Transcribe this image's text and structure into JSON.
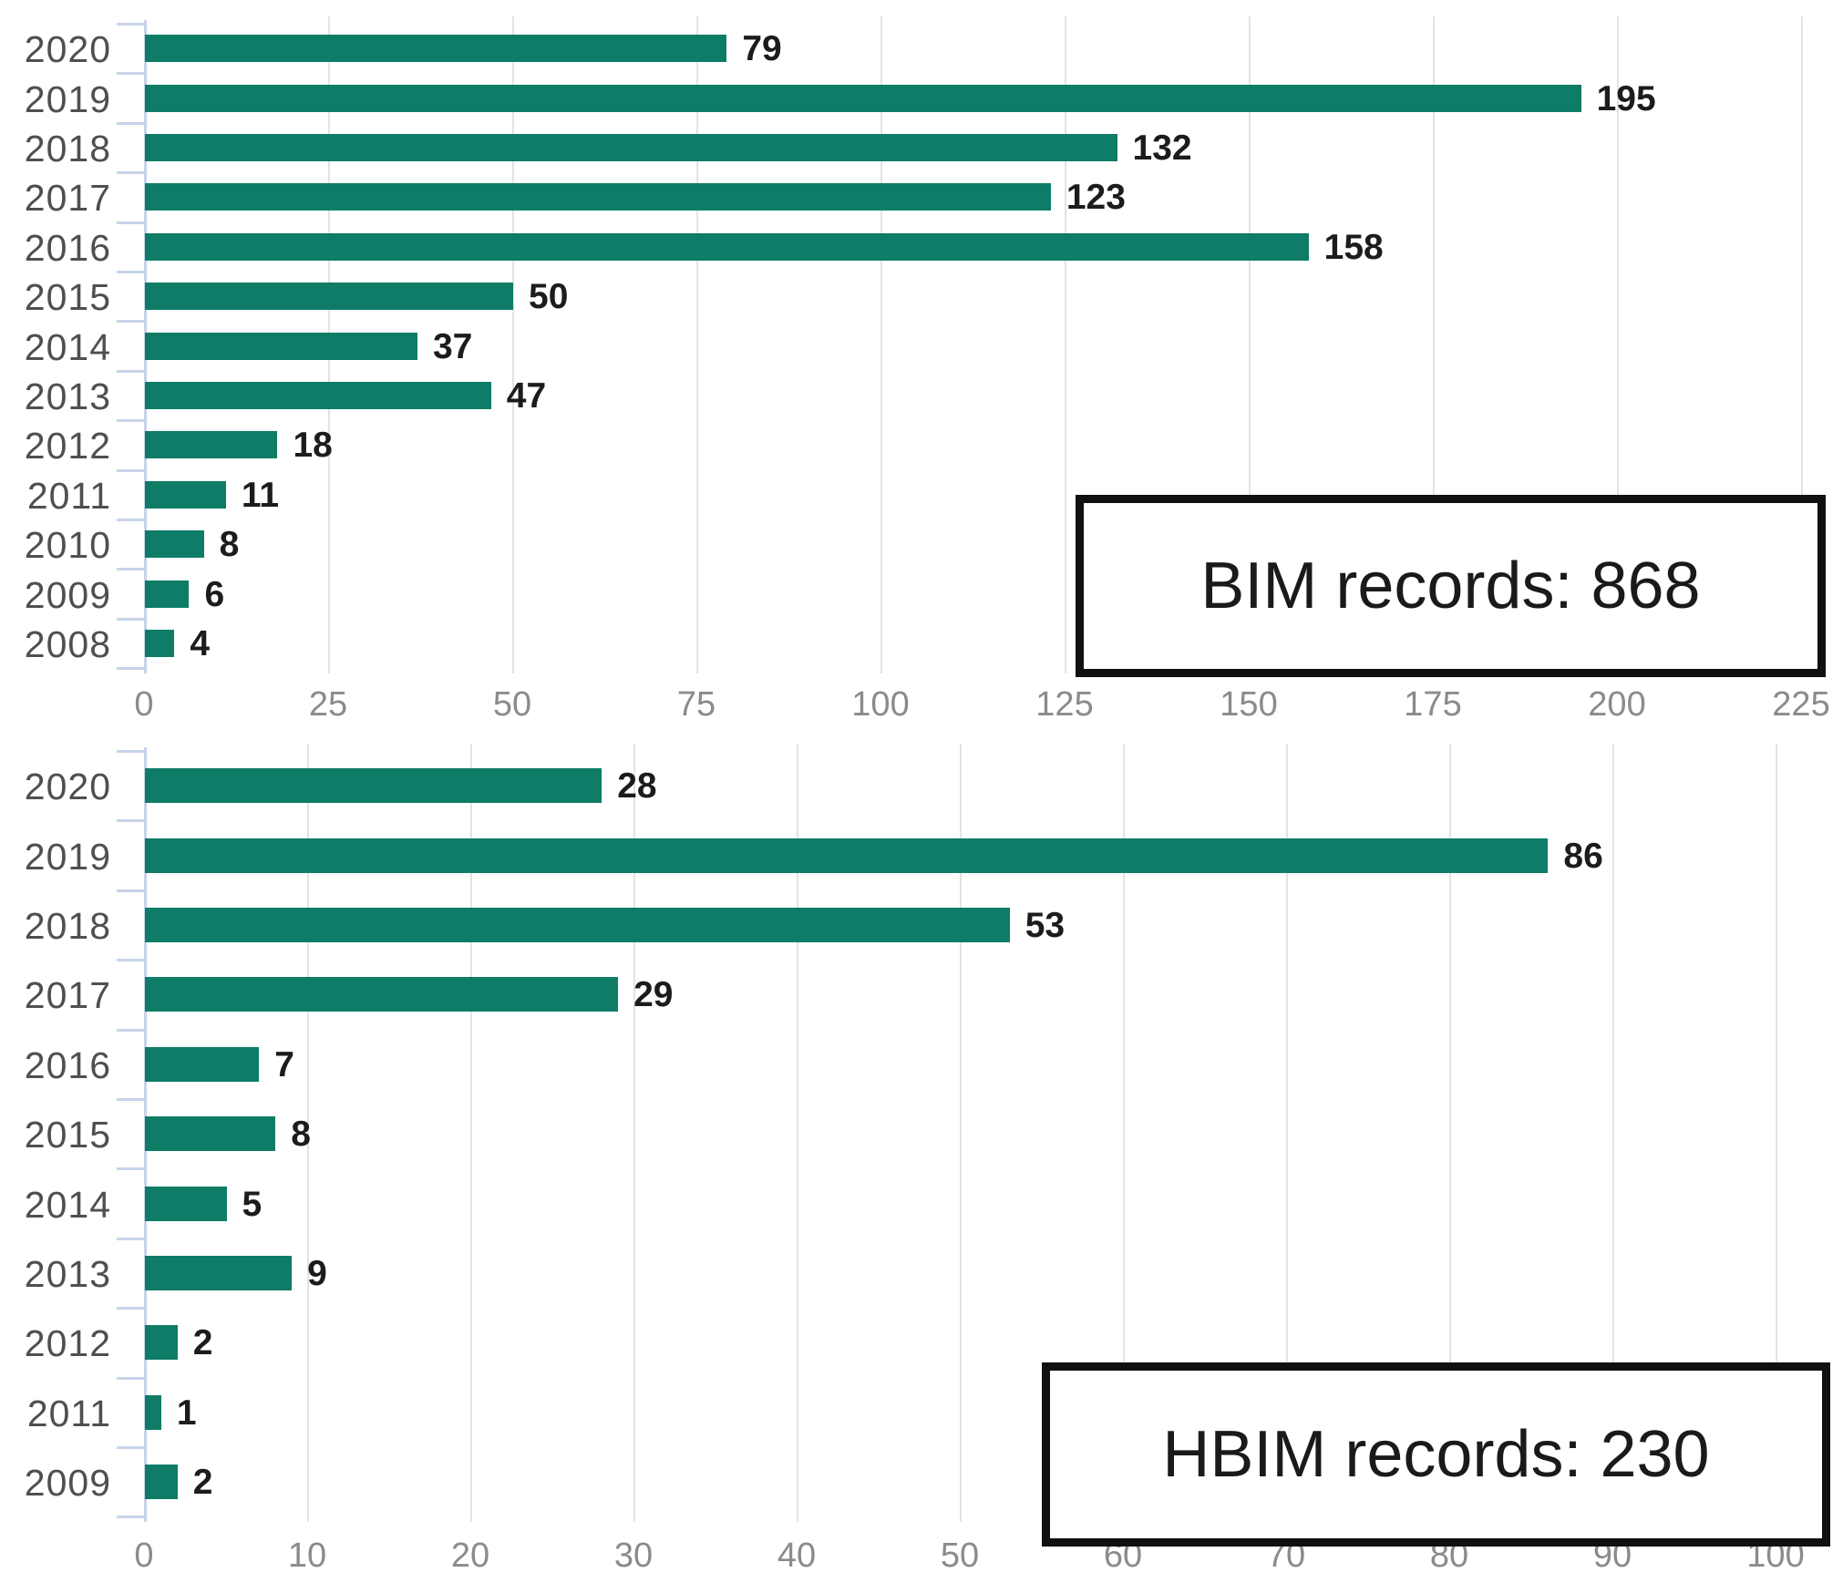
{
  "chart_data": [
    {
      "type": "bar",
      "orientation": "horizontal",
      "title": "",
      "annotation": "BIM records: 868",
      "total_records": 868,
      "categories": [
        "2020",
        "2019",
        "2018",
        "2017",
        "2016",
        "2015",
        "2014",
        "2013",
        "2012",
        "2011",
        "2010",
        "2009",
        "2008"
      ],
      "values": [
        79,
        195,
        132,
        123,
        158,
        50,
        37,
        47,
        18,
        11,
        8,
        6,
        4
      ],
      "xlabel": "",
      "ylabel": "",
      "xlim": [
        0,
        225
      ],
      "x_ticks": [
        0,
        25,
        50,
        75,
        100,
        125,
        150,
        175,
        200,
        225
      ],
      "grid": "vertical",
      "bar_color": "#0e7c66"
    },
    {
      "type": "bar",
      "orientation": "horizontal",
      "title": "",
      "annotation": "HBIM records: 230",
      "total_records": 230,
      "categories": [
        "2020",
        "2019",
        "2018",
        "2017",
        "2016",
        "2015",
        "2014",
        "2013",
        "2012",
        "2011",
        "2009"
      ],
      "values": [
        28,
        86,
        53,
        29,
        7,
        8,
        5,
        9,
        2,
        1,
        2
      ],
      "xlabel": "",
      "ylabel": "",
      "xlim": [
        0,
        100
      ],
      "x_ticks": [
        0,
        10,
        20,
        30,
        40,
        50,
        60,
        70,
        80,
        90,
        100
      ],
      "grid": "vertical",
      "bar_color": "#0e7c66"
    }
  ],
  "colors": {
    "bar": "#0e7c66",
    "axis": "#c7d4ea",
    "gridline": "#e3e3e3",
    "year_label": "#4f4f4f",
    "value_label": "#1c1c1c",
    "tick_label": "#8b8b8b",
    "box_border": "#101010"
  }
}
